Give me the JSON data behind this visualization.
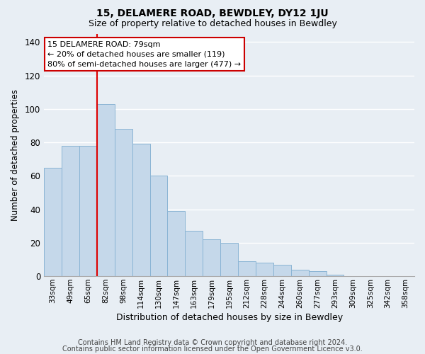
{
  "title": "15, DELAMERE ROAD, BEWDLEY, DY12 1JU",
  "subtitle": "Size of property relative to detached houses in Bewdley",
  "xlabel": "Distribution of detached houses by size in Bewdley",
  "ylabel": "Number of detached properties",
  "footer_line1": "Contains HM Land Registry data © Crown copyright and database right 2024.",
  "footer_line2": "Contains public sector information licensed under the Open Government Licence v3.0.",
  "bar_labels": [
    "33sqm",
    "49sqm",
    "65sqm",
    "82sqm",
    "98sqm",
    "114sqm",
    "130sqm",
    "147sqm",
    "163sqm",
    "179sqm",
    "195sqm",
    "212sqm",
    "228sqm",
    "244sqm",
    "260sqm",
    "277sqm",
    "293sqm",
    "309sqm",
    "325sqm",
    "342sqm",
    "358sqm"
  ],
  "bar_values": [
    65,
    78,
    78,
    103,
    88,
    79,
    60,
    39,
    27,
    22,
    20,
    9,
    8,
    7,
    4,
    3,
    1,
    0,
    0,
    0,
    0
  ],
  "bar_color": "#c5d8ea",
  "bar_edge_color": "#8ab4d4",
  "vline_index": 3,
  "vline_color": "#dd0000",
  "annotation_title": "15 DELAMERE ROAD: 79sqm",
  "annotation_line1": "← 20% of detached houses are smaller (119)",
  "annotation_line2": "80% of semi-detached houses are larger (477) →",
  "annotation_box_facecolor": "#ffffff",
  "annotation_box_edgecolor": "#cc0000",
  "ylim": [
    0,
    145
  ],
  "yticks": [
    0,
    20,
    40,
    60,
    80,
    100,
    120,
    140
  ],
  "background_color": "#e8eef4",
  "grid_color": "#ffffff",
  "title_fontsize": 10,
  "subtitle_fontsize": 9,
  "footer_fontsize": 7
}
